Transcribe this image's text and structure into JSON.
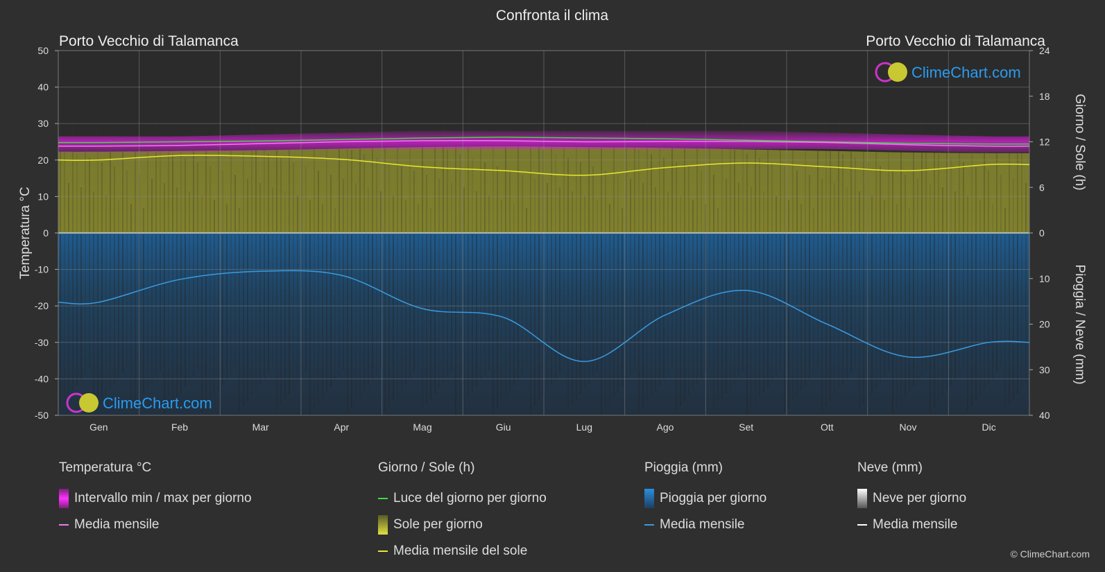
{
  "title": "Confronta il clima",
  "location_left": "Porto Vecchio di Talamanca",
  "location_right": "Porto Vecchio di Talamanca",
  "watermark": "ClimeChart.com",
  "copyright": "© ClimeChart.com",
  "colors": {
    "background": "#2f2f2f",
    "temp_range": "#e01ee0",
    "temp_mean": "#f07af0",
    "daylight": "#3ddc3d",
    "sun_fill": "#a6a632",
    "sun_mean": "#e8e832",
    "rain_fill": "#1f5f95",
    "rain_mean": "#3a9be0",
    "snow_mean": "#ffffff",
    "brand": "#2a9bf0"
  },
  "chart_data": {
    "type": "line",
    "title": "Confronta il clima",
    "months": [
      "Gen",
      "Feb",
      "Mar",
      "Apr",
      "Mag",
      "Giu",
      "Lug",
      "Ago",
      "Set",
      "Ott",
      "Nov",
      "Dic"
    ],
    "axes": {
      "left": {
        "label": "Temperatura °C",
        "range": [
          -50,
          50
        ],
        "ticks": [
          50,
          40,
          30,
          20,
          10,
          0,
          -10,
          -20,
          -30,
          -40,
          -50
        ]
      },
      "right_top": {
        "label": "Giorno / Sole (h)",
        "range": [
          0,
          24
        ],
        "ticks": [
          24,
          18,
          12,
          6,
          0
        ]
      },
      "right_bottom": {
        "label": "Pioggia / Neve (mm)",
        "range": [
          0,
          40
        ],
        "ticks": [
          10,
          20,
          30,
          40
        ]
      }
    },
    "grid": true,
    "series": [
      {
        "key": "temp_max",
        "values": [
          26.5,
          26.5,
          27,
          27.5,
          28,
          28,
          28,
          28,
          28,
          27.5,
          27,
          26.5
        ]
      },
      {
        "key": "temp_min",
        "values": [
          22,
          22,
          22.5,
          23,
          23,
          23,
          23,
          23,
          23,
          23,
          22.5,
          22
        ]
      },
      {
        "key": "temp_mean",
        "values": [
          23.8,
          24.0,
          24.5,
          25.0,
          25.3,
          25.3,
          25.0,
          25.1,
          25.1,
          24.8,
          24.2,
          23.8
        ]
      },
      {
        "key": "daylight",
        "values": [
          11.9,
          12.0,
          12.1,
          12.3,
          12.5,
          12.6,
          12.5,
          12.4,
          12.2,
          12.0,
          11.8,
          11.7
        ]
      },
      {
        "key": "sun_mean",
        "values": [
          9.6,
          10.2,
          10.1,
          9.7,
          8.7,
          8.2,
          7.6,
          8.6,
          9.2,
          8.7,
          8.2,
          9.0
        ]
      },
      {
        "key": "rain_mean",
        "values": [
          15.2,
          10.2,
          8.4,
          9.3,
          16.6,
          18.5,
          28.2,
          18.0,
          12.6,
          20.0,
          27.2,
          24.0
        ]
      }
    ]
  },
  "legend": {
    "temperature": {
      "heading": "Temperatura °C",
      "items": [
        {
          "label": "Intervallo min / max per giorno"
        },
        {
          "label": "Media mensile"
        }
      ]
    },
    "sun": {
      "heading": "Giorno / Sole (h)",
      "items": [
        {
          "label": "Luce del giorno per giorno"
        },
        {
          "label": "Sole per giorno"
        },
        {
          "label": "Media mensile del sole"
        }
      ]
    },
    "rain": {
      "heading": "Pioggia (mm)",
      "items": [
        {
          "label": "Pioggia per giorno"
        },
        {
          "label": "Media mensile"
        }
      ]
    },
    "snow": {
      "heading": "Neve (mm)",
      "items": [
        {
          "label": "Neve per giorno"
        },
        {
          "label": "Media mensile"
        }
      ]
    }
  }
}
